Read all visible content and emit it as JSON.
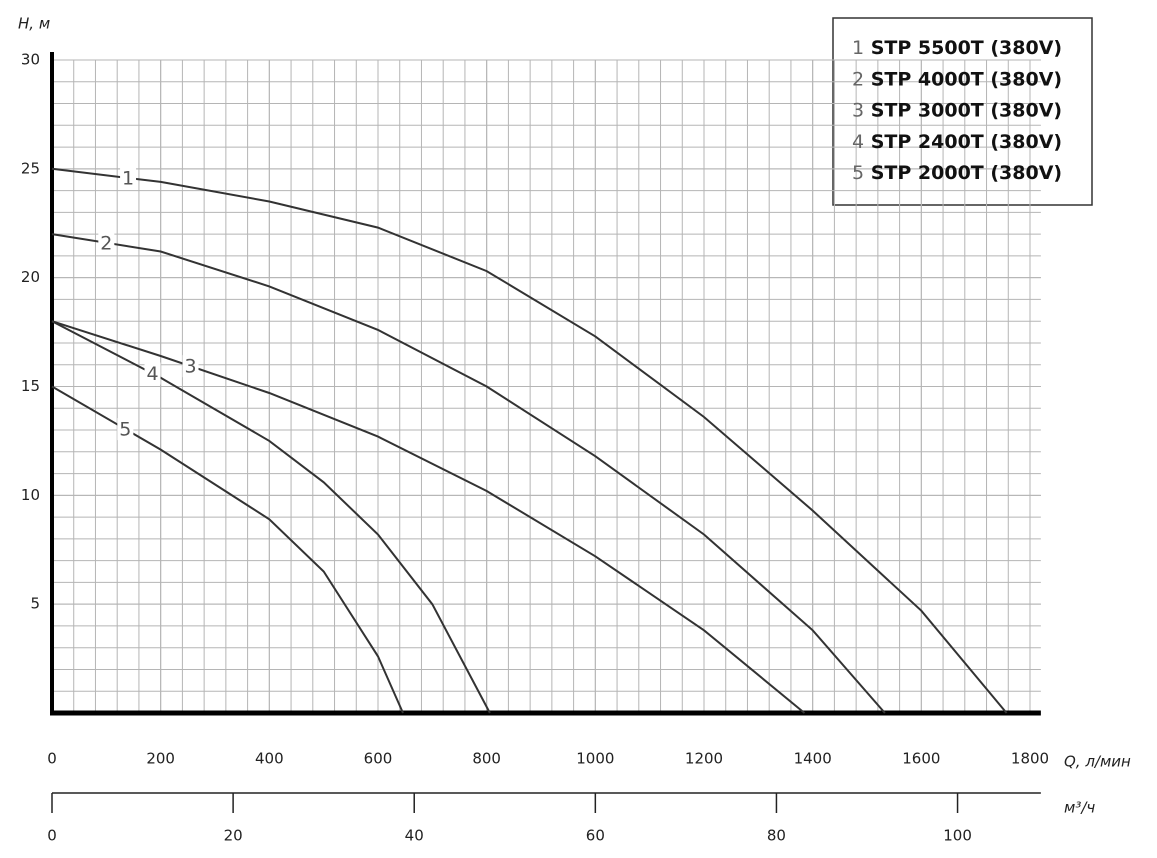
{
  "chart_data": {
    "type": "line",
    "y_label": "H, м",
    "x_label": "Q, л/мин",
    "x2_label": "м³/ч",
    "xlim": [
      0,
      1820
    ],
    "xticks": [
      0,
      200,
      400,
      600,
      800,
      1000,
      1200,
      1400,
      1600,
      1800
    ],
    "x2lim": [
      0,
      109.2
    ],
    "x2ticks": [
      0,
      20,
      40,
      60,
      80,
      100
    ],
    "ylim": [
      0,
      30
    ],
    "yticks": [
      5,
      10,
      15,
      20,
      25,
      30
    ],
    "grid": true,
    "legend": "top-right",
    "series": [
      {
        "label": "1",
        "name": "STP 5500T (380V)",
        "color": "#333333",
        "x": [
          0,
          200,
          400,
          600,
          800,
          1000,
          1200,
          1400,
          1600,
          1757
        ],
        "values": [
          25,
          24.4,
          23.5,
          22.3,
          20.3,
          17.3,
          13.6,
          9.3,
          4.7,
          0
        ]
      },
      {
        "label": "2",
        "name": "STP 4000T (380V)",
        "color": "#333333",
        "x": [
          0,
          200,
          400,
          600,
          800,
          1000,
          1200,
          1400,
          1533
        ],
        "values": [
          22,
          21.2,
          19.6,
          17.6,
          15.0,
          11.8,
          8.2,
          3.8,
          0
        ]
      },
      {
        "label": "3",
        "name": "STP 3000T (380V)",
        "color": "#333333",
        "x": [
          0,
          200,
          400,
          600,
          800,
          1000,
          1200,
          1385
        ],
        "values": [
          18,
          16.4,
          14.7,
          12.7,
          10.2,
          7.2,
          3.8,
          0
        ]
      },
      {
        "label": "4",
        "name": "STP 2400T (380V)",
        "color": "#333333",
        "x": [
          0,
          200,
          400,
          500,
          600,
          700,
          806
        ],
        "values": [
          18,
          15.4,
          12.5,
          10.6,
          8.2,
          5.0,
          0
        ]
      },
      {
        "label": "5",
        "name": "STP 2000T (380V)",
        "color": "#333333",
        "x": [
          0,
          200,
          400,
          500,
          600,
          646
        ],
        "values": [
          15,
          12.1,
          8.9,
          6.5,
          2.6,
          0
        ]
      }
    ]
  }
}
